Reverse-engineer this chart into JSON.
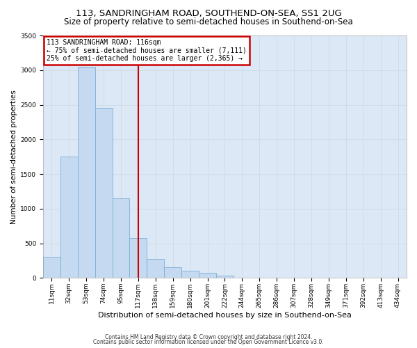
{
  "title": "113, SANDRINGHAM ROAD, SOUTHEND-ON-SEA, SS1 2UG",
  "subtitle": "Size of property relative to semi-detached houses in Southend-on-Sea",
  "xlabel": "Distribution of semi-detached houses by size in Southend-on-Sea",
  "ylabel": "Number of semi-detached properties",
  "footnote1": "Contains HM Land Registry data © Crown copyright and database right 2024.",
  "footnote2": "Contains public sector information licensed under the Open Government Licence v3.0.",
  "bar_labels": [
    "11sqm",
    "32sqm",
    "53sqm",
    "74sqm",
    "95sqm",
    "117sqm",
    "138sqm",
    "159sqm",
    "180sqm",
    "201sqm",
    "222sqm",
    "244sqm",
    "265sqm",
    "286sqm",
    "307sqm",
    "328sqm",
    "349sqm",
    "371sqm",
    "392sqm",
    "413sqm",
    "434sqm"
  ],
  "bar_values": [
    300,
    1750,
    3050,
    2450,
    1150,
    580,
    270,
    150,
    100,
    75,
    30,
    0,
    0,
    0,
    0,
    0,
    0,
    0,
    0,
    0,
    0
  ],
  "bar_color": "#c5d9f0",
  "bar_edge_color": "#7aaed6",
  "ylim": [
    0,
    3500
  ],
  "yticks": [
    0,
    500,
    1000,
    1500,
    2000,
    2500,
    3000,
    3500
  ],
  "property_label": "113 SANDRINGHAM ROAD: 116sqm",
  "annotation_line1": "← 75% of semi-detached houses are smaller (7,111)",
  "annotation_line2": "25% of semi-detached houses are larger (2,365) →",
  "vline_x_index": 5.0,
  "vline_color": "#cc0000",
  "annotation_box_color": "#cc0000",
  "grid_color": "#d0dce8",
  "bg_color": "#dce8f5",
  "title_fontsize": 9.5,
  "subtitle_fontsize": 8.5,
  "xlabel_fontsize": 8,
  "ylabel_fontsize": 7.5,
  "tick_fontsize": 6.5,
  "annot_fontsize": 7,
  "footnote_fontsize": 5.5
}
